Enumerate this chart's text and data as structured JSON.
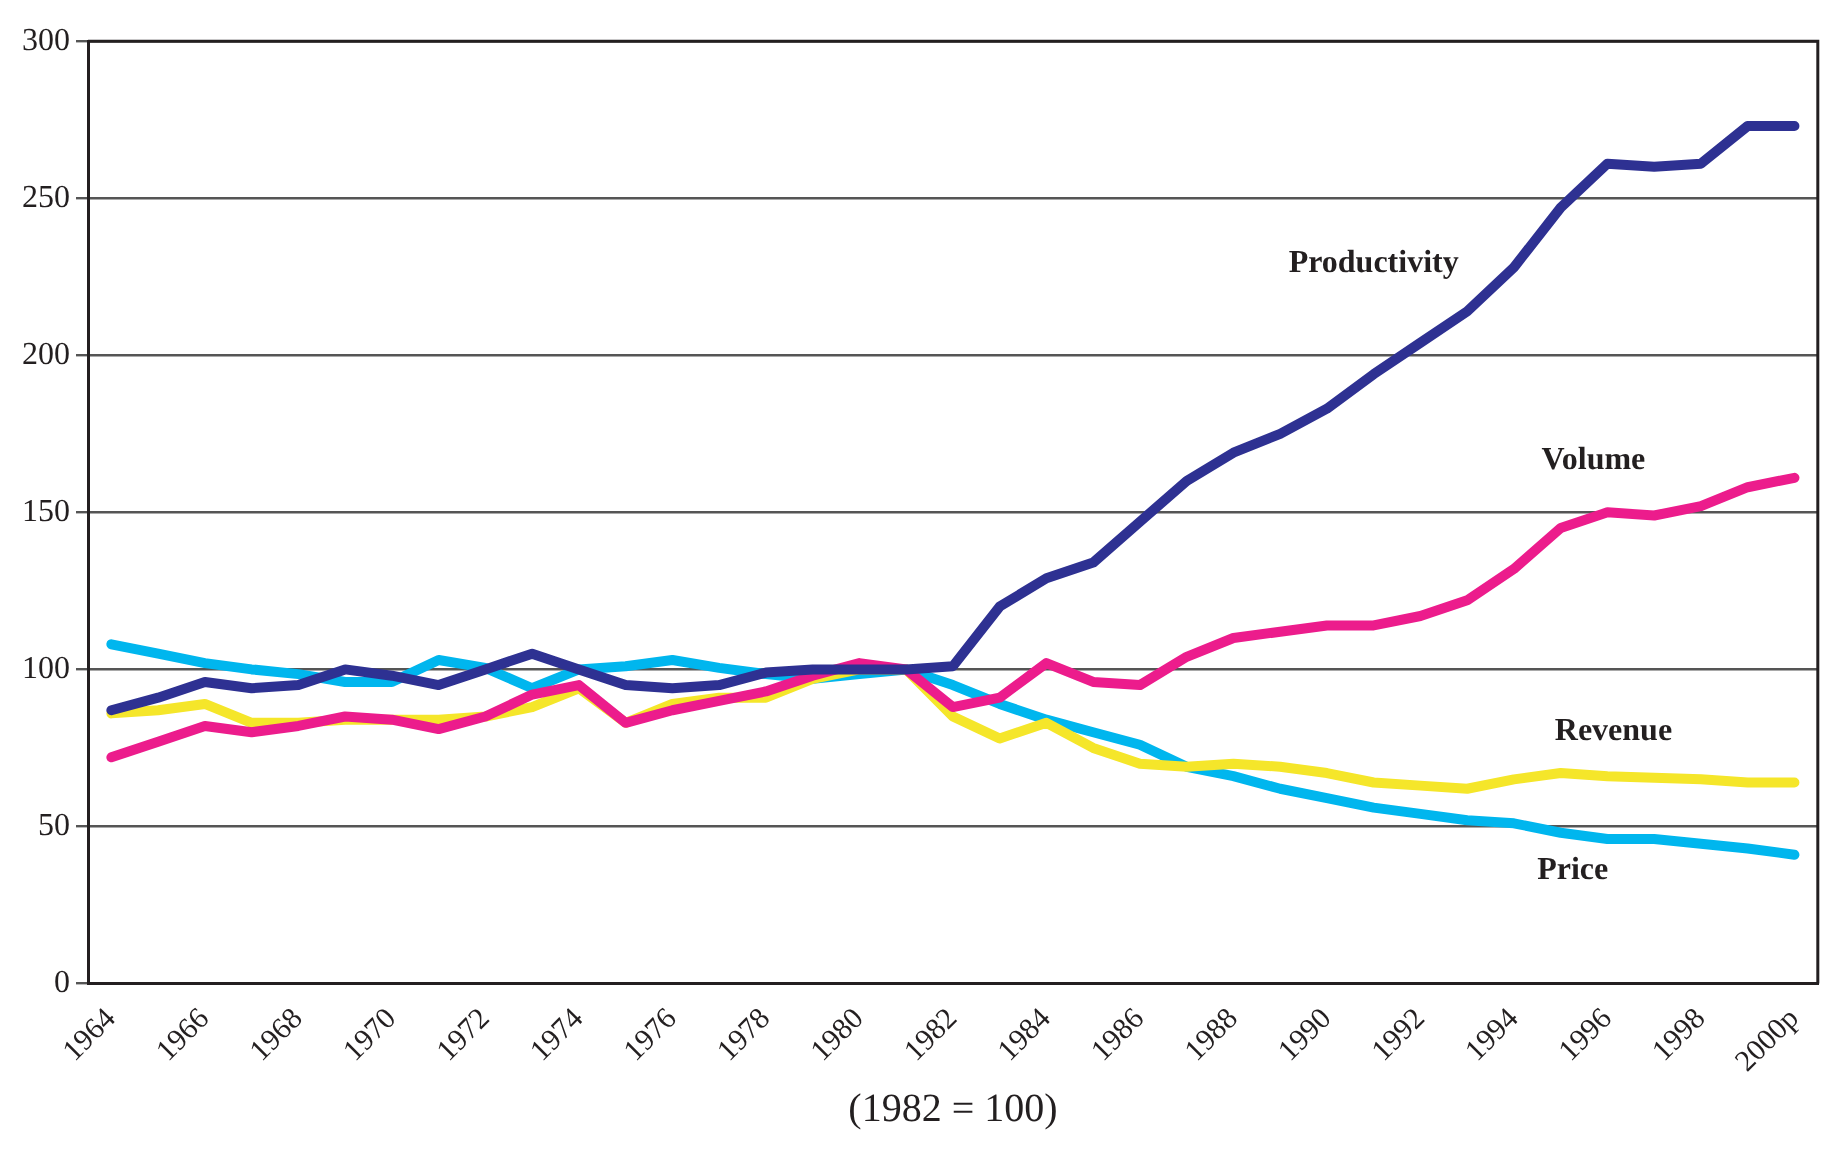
{
  "chart_data": {
    "type": "line",
    "xlabel": "(1982 = 100)",
    "categories": [
      "1964",
      null,
      "1966",
      null,
      "1968",
      null,
      "1970",
      null,
      "1972",
      null,
      "1974",
      null,
      "1976",
      null,
      "1978",
      null,
      "1980",
      null,
      "1982",
      null,
      "1984",
      null,
      "1986",
      null,
      "1988",
      null,
      "1990",
      null,
      "1992",
      null,
      "1994",
      null,
      "1996",
      null,
      "1998",
      null,
      "2000p"
    ],
    "series": [
      {
        "name": "Productivity",
        "color": "#2e3192",
        "values": [
          87,
          91,
          96,
          94,
          95,
          100,
          98,
          95,
          100,
          105,
          100,
          95,
          94,
          95,
          99,
          100,
          100,
          100,
          101,
          120,
          129,
          134,
          147,
          160,
          169,
          175,
          183,
          194,
          204,
          214,
          228,
          247,
          261,
          260,
          261,
          273,
          273
        ]
      },
      {
        "name": "Volume",
        "color": "#ec1c8c",
        "values": [
          72,
          77,
          82,
          80,
          82,
          85,
          84,
          81,
          85,
          92,
          95,
          83,
          87,
          90,
          93,
          98,
          102,
          100,
          88,
          91,
          102,
          96,
          95,
          104,
          110,
          112,
          114,
          114,
          117,
          122,
          132,
          145,
          150,
          149,
          152,
          158,
          161
        ]
      },
      {
        "name": "Revenue",
        "color": "#f5e62a",
        "values": [
          86,
          87,
          89,
          83,
          83,
          84,
          84,
          84,
          85,
          88,
          94,
          83,
          89,
          91,
          91,
          97,
          100,
          100,
          85,
          78,
          83,
          75,
          70,
          69,
          70,
          69,
          67,
          64,
          63,
          62,
          65,
          67,
          66,
          65.5,
          65,
          64,
          64
        ]
      },
      {
        "name": "Price",
        "color": "#00b6ee",
        "values": [
          108,
          105,
          102,
          100,
          98.5,
          96,
          96,
          103,
          100.5,
          94,
          100,
          101,
          103,
          100.5,
          98.5,
          97,
          98.5,
          100,
          95,
          89,
          84,
          80,
          76,
          69,
          66,
          62,
          59,
          56,
          54,
          52,
          51,
          48,
          46,
          46,
          44.5,
          43,
          41
        ]
      }
    ],
    "ylim": [
      0,
      300
    ],
    "yticks": [
      0,
      50,
      100,
      150,
      200,
      250,
      300
    ],
    "grid": "y",
    "legend": false,
    "line_style": "solid",
    "marker": "none"
  }
}
